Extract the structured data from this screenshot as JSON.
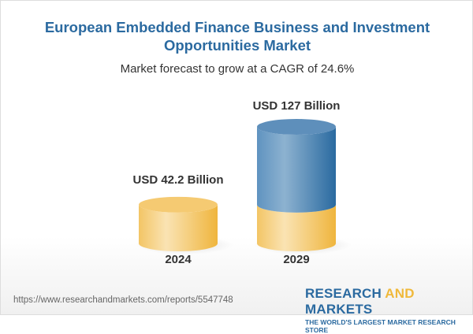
{
  "title": "European Embedded Finance Business and Investment Opportunities Market",
  "subtitle": "Market forecast to grow at a CAGR of 24.6%",
  "chart_data": {
    "type": "bar",
    "style": "3d-cylinder",
    "categories": [
      "2024",
      "2029"
    ],
    "values": [
      42.2,
      127
    ],
    "data_labels": [
      "USD 42.2 Billion",
      "USD 127 Billion"
    ],
    "unit": "USD Billion",
    "cagr": "24.6%",
    "colors": {
      "base": "#f2c260",
      "growth": "#4a82b4"
    }
  },
  "footer": {
    "url": "https://www.researchandmarkets.com/reports/5547748",
    "logo_word1": "RESEARCH ",
    "logo_word2": "AND",
    "logo_word3": " MARKETS",
    "logo_tagline": "THE WORLD'S LARGEST MARKET RESEARCH STORE"
  }
}
